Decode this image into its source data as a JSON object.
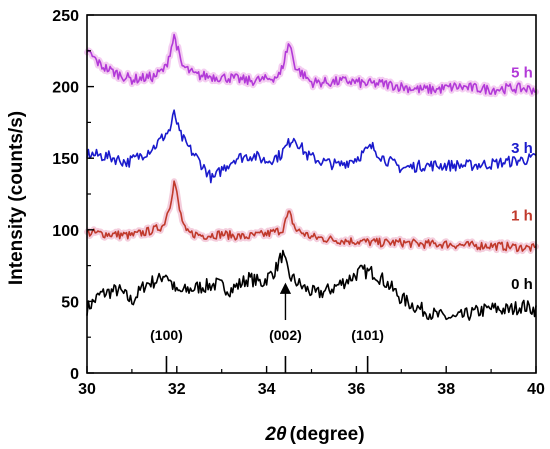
{
  "chart_data": {
    "type": "line",
    "xlabel_symbol": "2θ",
    "xlabel_unit": "(degree)",
    "ylabel": "Intensity (counts/s)",
    "xlim": [
      30,
      40
    ],
    "ylim": [
      0,
      250
    ],
    "xticks": [
      30,
      32,
      34,
      36,
      38,
      40
    ],
    "yticks": [
      0,
      50,
      100,
      150,
      200,
      250
    ],
    "grid": false,
    "legend": "inline labels right of each trace",
    "series": [
      {
        "name": "0 h",
        "color": "#000000",
        "glow": null,
        "base": 52,
        "noise_amp": 5,
        "points": [
          [
            30,
            45
          ],
          [
            30.3,
            55
          ],
          [
            30.7,
            58
          ],
          [
            31.0,
            50
          ],
          [
            31.3,
            62
          ],
          [
            31.6,
            65
          ],
          [
            31.75,
            70
          ],
          [
            32.0,
            56
          ],
          [
            32.5,
            60
          ],
          [
            32.9,
            62
          ],
          [
            33.2,
            58
          ],
          [
            33.6,
            66
          ],
          [
            33.9,
            63
          ],
          [
            34.2,
            72
          ],
          [
            34.35,
            83
          ],
          [
            34.5,
            68
          ],
          [
            34.8,
            60
          ],
          [
            35.1,
            55
          ],
          [
            35.4,
            58
          ],
          [
            35.8,
            65
          ],
          [
            36.1,
            71
          ],
          [
            36.4,
            70
          ],
          [
            36.7,
            62
          ],
          [
            37.0,
            52
          ],
          [
            37.4,
            45
          ],
          [
            37.8,
            40
          ],
          [
            38.2,
            38
          ],
          [
            38.6,
            42
          ],
          [
            39.0,
            45
          ],
          [
            39.4,
            44
          ],
          [
            39.7,
            47
          ],
          [
            40.0,
            44
          ]
        ],
        "label_value": 62
      },
      {
        "name": "1 h",
        "color": "#c0392b",
        "glow": "#f3c8d8",
        "base": 96,
        "noise_amp": 3,
        "points": [
          [
            30,
            98
          ],
          [
            30.5,
            97
          ],
          [
            31.0,
            96
          ],
          [
            31.5,
            100
          ],
          [
            31.7,
            103
          ],
          [
            31.85,
            118
          ],
          [
            31.95,
            135
          ],
          [
            32.05,
            115
          ],
          [
            32.2,
            98
          ],
          [
            32.6,
            96
          ],
          [
            33.0,
            97
          ],
          [
            33.5,
            95
          ],
          [
            34.0,
            97
          ],
          [
            34.35,
            100
          ],
          [
            34.5,
            112
          ],
          [
            34.65,
            100
          ],
          [
            35.0,
            95
          ],
          [
            35.5,
            93
          ],
          [
            36.0,
            92
          ],
          [
            36.5,
            91
          ],
          [
            37.0,
            91
          ],
          [
            37.5,
            90
          ],
          [
            38.0,
            90
          ],
          [
            38.5,
            89
          ],
          [
            39.0,
            89
          ],
          [
            39.5,
            88
          ],
          [
            40.0,
            87
          ]
        ],
        "label_value": 110
      },
      {
        "name": "3 h",
        "color": "#1a1acc",
        "glow": null,
        "base": 152,
        "noise_amp": 4,
        "points": [
          [
            30,
            153
          ],
          [
            30.5,
            151
          ],
          [
            30.9,
            147
          ],
          [
            31.2,
            152
          ],
          [
            31.5,
            158
          ],
          [
            31.7,
            165
          ],
          [
            31.85,
            170
          ],
          [
            31.95,
            182
          ],
          [
            32.05,
            168
          ],
          [
            32.2,
            160
          ],
          [
            32.5,
            148
          ],
          [
            32.8,
            135
          ],
          [
            33.0,
            142
          ],
          [
            33.3,
            150
          ],
          [
            33.7,
            152
          ],
          [
            34.0,
            148
          ],
          [
            34.3,
            152
          ],
          [
            34.6,
            165
          ],
          [
            34.9,
            152
          ],
          [
            35.2,
            148
          ],
          [
            35.6,
            145
          ],
          [
            36.0,
            150
          ],
          [
            36.35,
            158
          ],
          [
            36.6,
            150
          ],
          [
            37.0,
            143
          ],
          [
            37.5,
            145
          ],
          [
            38.0,
            145
          ],
          [
            38.5,
            145
          ],
          [
            39.0,
            146
          ],
          [
            39.5,
            148
          ],
          [
            40.0,
            150
          ]
        ],
        "label_value": 157
      },
      {
        "name": "5 h",
        "color": "#b23ad8",
        "glow": "#f3c8f0",
        "base": 205,
        "noise_amp": 3.5,
        "points": [
          [
            30,
            225
          ],
          [
            30.3,
            215
          ],
          [
            30.6,
            210
          ],
          [
            31.0,
            205
          ],
          [
            31.5,
            207
          ],
          [
            31.75,
            213
          ],
          [
            31.95,
            236
          ],
          [
            32.1,
            215
          ],
          [
            32.4,
            208
          ],
          [
            32.8,
            207
          ],
          [
            33.2,
            206
          ],
          [
            33.6,
            204
          ],
          [
            34.0,
            205
          ],
          [
            34.3,
            208
          ],
          [
            34.5,
            231
          ],
          [
            34.65,
            213
          ],
          [
            35.0,
            203
          ],
          [
            35.4,
            203
          ],
          [
            35.8,
            204
          ],
          [
            36.2,
            202
          ],
          [
            36.6,
            202
          ],
          [
            37.0,
            200
          ],
          [
            37.4,
            198
          ],
          [
            37.8,
            198
          ],
          [
            38.2,
            200
          ],
          [
            38.6,
            199
          ],
          [
            39.0,
            198
          ],
          [
            39.5,
            199
          ],
          [
            40.0,
            198
          ]
        ],
        "label_value": 210
      }
    ],
    "reference_peaks": [
      {
        "label": "(100)",
        "x": 31.77
      },
      {
        "label": "(002)",
        "x": 34.42
      },
      {
        "label": "(101)",
        "x": 36.25
      }
    ],
    "annotation_arrow": {
      "x": 34.42,
      "from_y": 37,
      "to_y": 62
    }
  }
}
